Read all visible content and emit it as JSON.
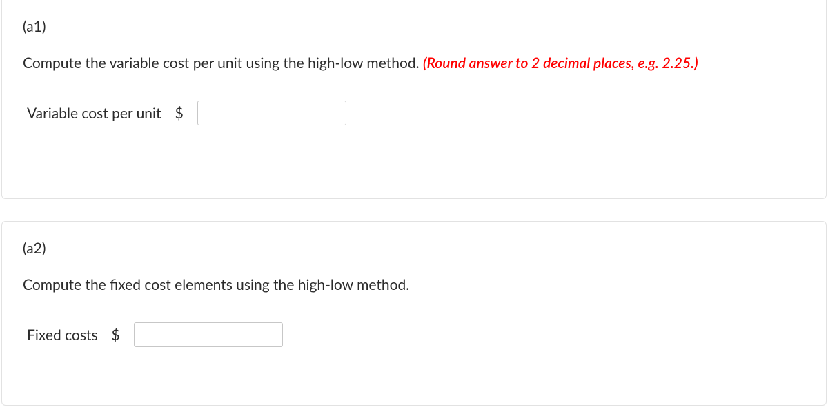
{
  "colors": {
    "text": "#2b2b2b",
    "hint": "#ff0000",
    "border": "#e2e2e2",
    "input_border": "#c7c7c7",
    "background": "#ffffff"
  },
  "a1": {
    "section_label": "(a1)",
    "prompt_text": "Compute the variable cost per unit using the high-low method. ",
    "hint_text": "(Round answer to 2 decimal places, e.g. 2.25.)",
    "answer_label": "Variable cost per unit",
    "currency_symbol": "$",
    "input_value": ""
  },
  "a2": {
    "section_label": "(a2)",
    "prompt_text": "Compute the fixed cost elements using the high-low method.",
    "answer_label": "Fixed costs",
    "currency_symbol": "$",
    "input_value": ""
  }
}
